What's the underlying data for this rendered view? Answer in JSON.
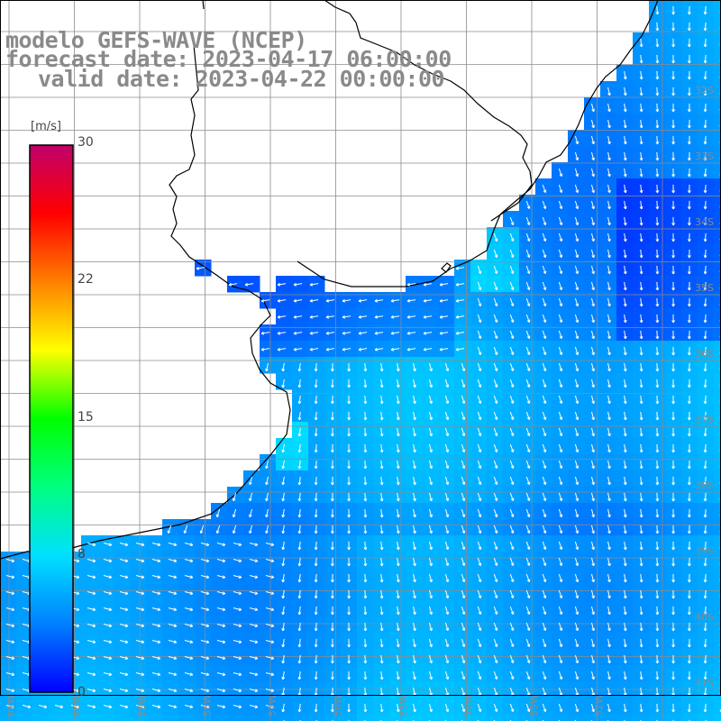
{
  "title": {
    "line1": "modelo GEFS-WAVE (NCEP)",
    "line2": "forecast date: 2023-04-17 06:00:00",
    "line3": "valid date: 2023-04-22 00:00:00"
  },
  "colorbar": {
    "unit": "[m/s]",
    "ticks": [
      "30",
      "22",
      "15",
      "8",
      "0"
    ],
    "tick_values": [
      30,
      22,
      15,
      8,
      0
    ],
    "range": [
      0,
      30
    ],
    "colors": [
      "#0000ff",
      "#0080ff",
      "#00e0ff",
      "#00ff80",
      "#00ff00",
      "#ffff00",
      "#ff8000",
      "#ff0000",
      "#c0006a"
    ]
  },
  "lat_labels": [
    "32S",
    "33S",
    "34S",
    "35S",
    "36S",
    "37S",
    "38S",
    "39S",
    "40S",
    "41S"
  ],
  "lon_labels": [
    "61W",
    "60W",
    "59W",
    "58W",
    "57W",
    "56W",
    "55W",
    "54W",
    "53W",
    "52W"
  ],
  "colors": {
    "land": "#ffffff",
    "grid": "#8c8c8c",
    "coast": "#000000",
    "label": "#8a8a8a",
    "arrow": "#ffffff"
  }
}
